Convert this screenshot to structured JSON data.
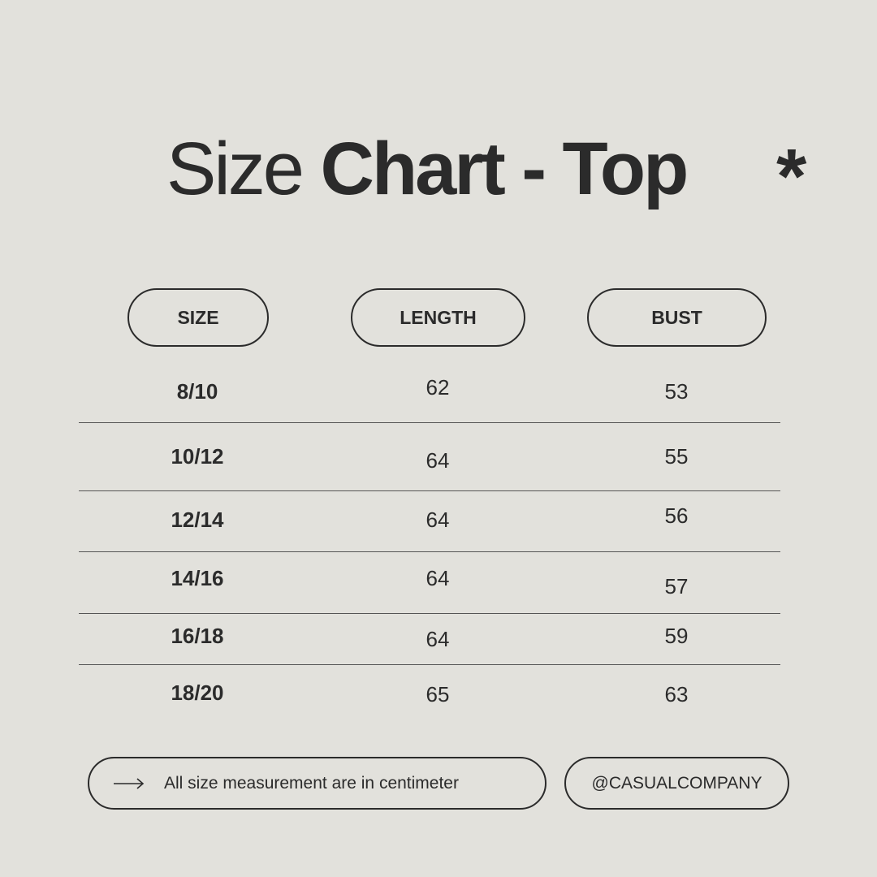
{
  "title": {
    "light": "Size",
    "bold": "Chart - Top"
  },
  "decoration_icon": "asterisk-icon",
  "table": {
    "headers": [
      "SIZE",
      "LENGTH",
      "BUST"
    ],
    "rows": [
      {
        "size": "8/10",
        "length": "62",
        "bust": "53"
      },
      {
        "size": "10/12",
        "length": "64",
        "bust": "55"
      },
      {
        "size": "12/14",
        "length": "64",
        "bust": "56"
      },
      {
        "size": "14/16",
        "length": "64",
        "bust": "57"
      },
      {
        "size": "16/18",
        "length": "64",
        "bust": "59"
      },
      {
        "size": "18/20",
        "length": "65",
        "bust": "63"
      }
    ]
  },
  "footer": {
    "note_icon": "arrow-right-icon",
    "note": "All size measurement are in centimeter",
    "handle": "@CASUALCOMPANY"
  },
  "colors": {
    "background": "#e2e1dc",
    "text": "#2b2b2b"
  }
}
